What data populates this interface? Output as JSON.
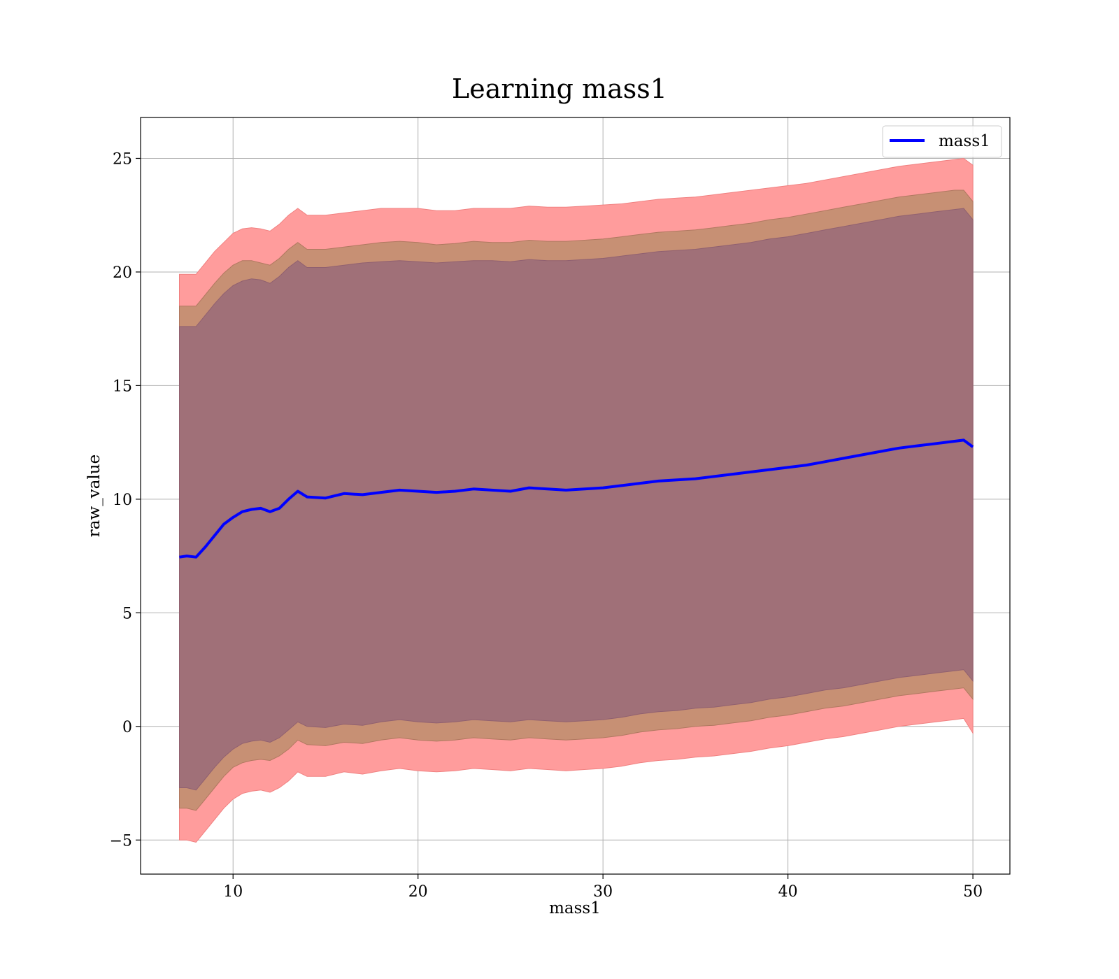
{
  "chart_data": {
    "type": "line",
    "title": "Learning mass1",
    "xlabel": "mass1",
    "ylabel": "raw_value",
    "xlim": [
      5,
      52
    ],
    "ylim": [
      -6.5,
      26.8
    ],
    "xticks": [
      10,
      20,
      30,
      40,
      50
    ],
    "xtick_labels": [
      "10",
      "20",
      "30",
      "40",
      "50"
    ],
    "yticks": [
      -5,
      0,
      5,
      10,
      15,
      20,
      25
    ],
    "ytick_labels": [
      "−5",
      "0",
      "5",
      "10",
      "15",
      "20",
      "25"
    ],
    "grid": true,
    "legend": {
      "position": "top-right",
      "entries": [
        "mass1"
      ]
    },
    "colors": {
      "line": "#0000ff",
      "band_outer": "#ff9c9c",
      "band_middle": "#c79074",
      "band_inner": "#a07078"
    },
    "series": [
      {
        "name": "mass1",
        "x": [
          7.1,
          7.5,
          8.0,
          8.5,
          9.0,
          9.5,
          10.0,
          10.5,
          11.0,
          11.5,
          12.0,
          12.5,
          13.0,
          13.5,
          14.0,
          15.0,
          16.0,
          17.0,
          18.0,
          19.0,
          20.0,
          21.0,
          22.0,
          23.0,
          24.0,
          25.0,
          26.0,
          27.0,
          28.0,
          29.0,
          30.0,
          31.0,
          32.0,
          33.0,
          34.0,
          35.0,
          36.0,
          37.0,
          38.0,
          39.0,
          40.0,
          41.0,
          42.0,
          43.0,
          44.0,
          45.0,
          46.0,
          47.0,
          48.0,
          49.0,
          49.5,
          50.0
        ],
        "y": [
          7.45,
          7.5,
          7.45,
          7.9,
          8.4,
          8.9,
          9.2,
          9.45,
          9.55,
          9.6,
          9.45,
          9.6,
          10.0,
          10.35,
          10.1,
          10.05,
          10.25,
          10.2,
          10.3,
          10.4,
          10.35,
          10.3,
          10.35,
          10.45,
          10.4,
          10.35,
          10.5,
          10.45,
          10.4,
          10.45,
          10.5,
          10.6,
          10.7,
          10.8,
          10.85,
          10.9,
          11.0,
          11.1,
          11.2,
          11.3,
          11.4,
          11.5,
          11.65,
          11.8,
          11.95,
          12.1,
          12.25,
          12.35,
          12.45,
          12.55,
          12.6,
          12.3
        ]
      }
    ],
    "bands": [
      {
        "x": [
          7.1,
          7.5,
          8.0,
          8.5,
          9.0,
          9.5,
          10.0,
          10.5,
          11.0,
          11.5,
          12.0,
          12.5,
          13.0,
          13.5,
          14.0,
          15.0,
          16.0,
          17.0,
          18.0,
          19.0,
          20.0,
          21.0,
          22.0,
          23.0,
          24.0,
          25.0,
          26.0,
          27.0,
          28.0,
          29.0,
          30.0,
          31.0,
          32.0,
          33.0,
          34.0,
          35.0,
          36.0,
          37.0,
          38.0,
          39.0,
          40.0,
          41.0,
          42.0,
          43.0,
          44.0,
          45.0,
          46.0,
          47.0,
          48.0,
          49.0,
          49.5,
          50.0
        ],
        "upper": [
          19.9,
          19.9,
          19.9,
          20.4,
          20.9,
          21.3,
          21.7,
          21.9,
          21.95,
          21.9,
          21.8,
          22.1,
          22.5,
          22.8,
          22.5,
          22.5,
          22.6,
          22.7,
          22.8,
          22.8,
          22.8,
          22.7,
          22.7,
          22.8,
          22.8,
          22.8,
          22.9,
          22.85,
          22.85,
          22.9,
          22.95,
          23.0,
          23.1,
          23.2,
          23.25,
          23.3,
          23.4,
          23.5,
          23.6,
          23.7,
          23.8,
          23.9,
          24.05,
          24.2,
          24.35,
          24.5,
          24.65,
          24.75,
          24.85,
          24.95,
          25.0,
          24.7
        ],
        "lower": [
          -5.0,
          -5.0,
          -5.1,
          -4.6,
          -4.1,
          -3.6,
          -3.2,
          -2.95,
          -2.85,
          -2.8,
          -2.9,
          -2.7,
          -2.4,
          -2.0,
          -2.2,
          -2.2,
          -2.0,
          -2.1,
          -1.95,
          -1.85,
          -1.95,
          -2.0,
          -1.95,
          -1.85,
          -1.9,
          -1.95,
          -1.85,
          -1.9,
          -1.95,
          -1.9,
          -1.85,
          -1.75,
          -1.6,
          -1.5,
          -1.45,
          -1.35,
          -1.3,
          -1.2,
          -1.1,
          -0.95,
          -0.85,
          -0.7,
          -0.55,
          -0.45,
          -0.3,
          -0.15,
          0.0,
          0.1,
          0.2,
          0.3,
          0.35,
          -0.3
        ]
      },
      {
        "x": [
          7.1,
          7.5,
          8.0,
          8.5,
          9.0,
          9.5,
          10.0,
          10.5,
          11.0,
          11.5,
          12.0,
          12.5,
          13.0,
          13.5,
          14.0,
          15.0,
          16.0,
          17.0,
          18.0,
          19.0,
          20.0,
          21.0,
          22.0,
          23.0,
          24.0,
          25.0,
          26.0,
          27.0,
          28.0,
          29.0,
          30.0,
          31.0,
          32.0,
          33.0,
          34.0,
          35.0,
          36.0,
          37.0,
          38.0,
          39.0,
          40.0,
          41.0,
          42.0,
          43.0,
          44.0,
          45.0,
          46.0,
          47.0,
          48.0,
          49.0,
          49.5,
          50.0
        ],
        "upper": [
          18.5,
          18.5,
          18.5,
          19.0,
          19.5,
          19.95,
          20.3,
          20.5,
          20.5,
          20.4,
          20.3,
          20.6,
          21.0,
          21.3,
          21.0,
          21.0,
          21.1,
          21.2,
          21.3,
          21.35,
          21.3,
          21.2,
          21.25,
          21.35,
          21.3,
          21.3,
          21.4,
          21.35,
          21.35,
          21.4,
          21.45,
          21.55,
          21.65,
          21.75,
          21.8,
          21.85,
          21.95,
          22.05,
          22.15,
          22.3,
          22.4,
          22.55,
          22.7,
          22.85,
          23.0,
          23.15,
          23.3,
          23.4,
          23.5,
          23.6,
          23.6,
          23.1
        ],
        "lower": [
          -3.6,
          -3.6,
          -3.7,
          -3.2,
          -2.7,
          -2.2,
          -1.8,
          -1.6,
          -1.5,
          -1.45,
          -1.5,
          -1.3,
          -1.0,
          -0.6,
          -0.8,
          -0.85,
          -0.7,
          -0.75,
          -0.6,
          -0.5,
          -0.6,
          -0.65,
          -0.6,
          -0.5,
          -0.55,
          -0.6,
          -0.5,
          -0.55,
          -0.6,
          -0.55,
          -0.5,
          -0.4,
          -0.25,
          -0.15,
          -0.1,
          0.0,
          0.05,
          0.15,
          0.25,
          0.4,
          0.5,
          0.65,
          0.8,
          0.9,
          1.05,
          1.2,
          1.35,
          1.45,
          1.55,
          1.65,
          1.7,
          1.2
        ]
      },
      {
        "x": [
          7.1,
          7.5,
          8.0,
          8.5,
          9.0,
          9.5,
          10.0,
          10.5,
          11.0,
          11.5,
          12.0,
          12.5,
          13.0,
          13.5,
          14.0,
          15.0,
          16.0,
          17.0,
          18.0,
          19.0,
          20.0,
          21.0,
          22.0,
          23.0,
          24.0,
          25.0,
          26.0,
          27.0,
          28.0,
          29.0,
          30.0,
          31.0,
          32.0,
          33.0,
          34.0,
          35.0,
          36.0,
          37.0,
          38.0,
          39.0,
          40.0,
          41.0,
          42.0,
          43.0,
          44.0,
          45.0,
          46.0,
          47.0,
          48.0,
          49.0,
          49.5,
          50.0
        ],
        "upper": [
          17.6,
          17.6,
          17.6,
          18.1,
          18.6,
          19.05,
          19.4,
          19.6,
          19.7,
          19.65,
          19.5,
          19.8,
          20.2,
          20.5,
          20.2,
          20.2,
          20.3,
          20.4,
          20.45,
          20.5,
          20.45,
          20.4,
          20.45,
          20.5,
          20.5,
          20.45,
          20.55,
          20.5,
          20.5,
          20.55,
          20.6,
          20.7,
          20.8,
          20.9,
          20.95,
          21.0,
          21.1,
          21.2,
          21.3,
          21.45,
          21.55,
          21.7,
          21.85,
          22.0,
          22.15,
          22.3,
          22.45,
          22.55,
          22.65,
          22.75,
          22.8,
          22.3
        ],
        "lower": [
          -2.7,
          -2.7,
          -2.8,
          -2.3,
          -1.8,
          -1.35,
          -1.0,
          -0.75,
          -0.65,
          -0.6,
          -0.7,
          -0.5,
          -0.15,
          0.2,
          0.0,
          -0.05,
          0.1,
          0.05,
          0.2,
          0.3,
          0.2,
          0.15,
          0.2,
          0.3,
          0.25,
          0.2,
          0.3,
          0.25,
          0.2,
          0.25,
          0.3,
          0.4,
          0.55,
          0.65,
          0.7,
          0.8,
          0.85,
          0.95,
          1.05,
          1.2,
          1.3,
          1.45,
          1.6,
          1.7,
          1.85,
          2.0,
          2.15,
          2.25,
          2.35,
          2.45,
          2.5,
          2.0
        ]
      }
    ]
  }
}
